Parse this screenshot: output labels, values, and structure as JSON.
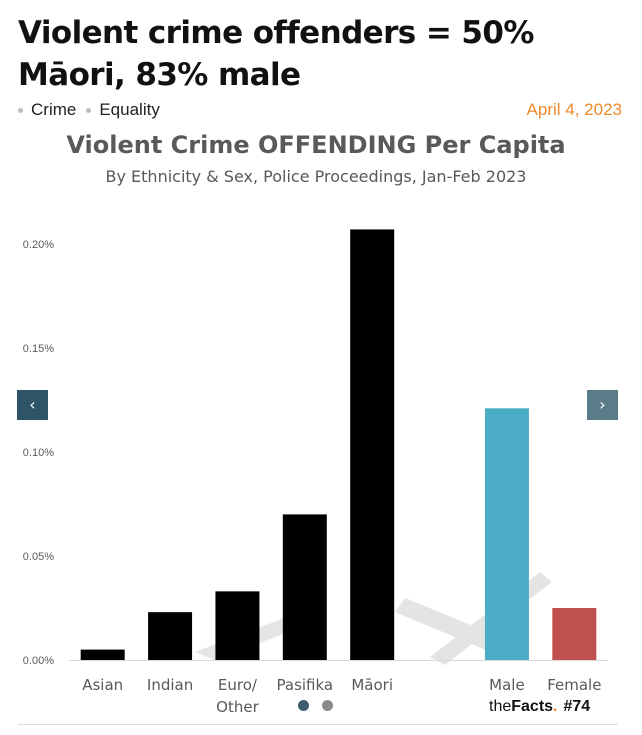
{
  "headline": "Violent crime offenders = 50% Māori, 83% male",
  "tags": [
    "Crime",
    "Equality"
  ],
  "date": "April 4, 2023",
  "nav": {
    "prev_icon": "chevron-left-icon",
    "next_icon": "chevron-right-icon"
  },
  "brand": {
    "prefix": "the",
    "name": "Facts",
    "dot": ".",
    "number": "#74"
  },
  "colors": {
    "date": "#ef8a2b",
    "bar_default": "#000000",
    "male": "#4bacc6",
    "female": "#c0504d"
  },
  "chart_data": {
    "type": "bar",
    "title": "Violent Crime OFFENDING Per Capita",
    "subtitle": "By Ethnicity & Sex, Police Proceedings, Jan-Feb 2023",
    "categories": [
      "Asian",
      "Indian",
      "Euro/\nOther",
      "Pasifika",
      "Māori",
      "",
      "Male",
      "Female"
    ],
    "values": [
      0.005,
      0.023,
      0.033,
      0.07,
      0.207,
      null,
      0.121,
      0.025
    ],
    "bar_colors": [
      "#000000",
      "#000000",
      "#000000",
      "#000000",
      "#000000",
      null,
      "#4bacc6",
      "#c0504d"
    ],
    "yticks": [
      "0.00%",
      "0.05%",
      "0.10%",
      "0.15%",
      "0.20%"
    ],
    "ytick_values": [
      0,
      0.05,
      0.1,
      0.15,
      0.2
    ],
    "ylim": [
      0,
      0.2
    ],
    "ylabel": "",
    "xlabel": "",
    "grid": false,
    "legend": "none"
  }
}
